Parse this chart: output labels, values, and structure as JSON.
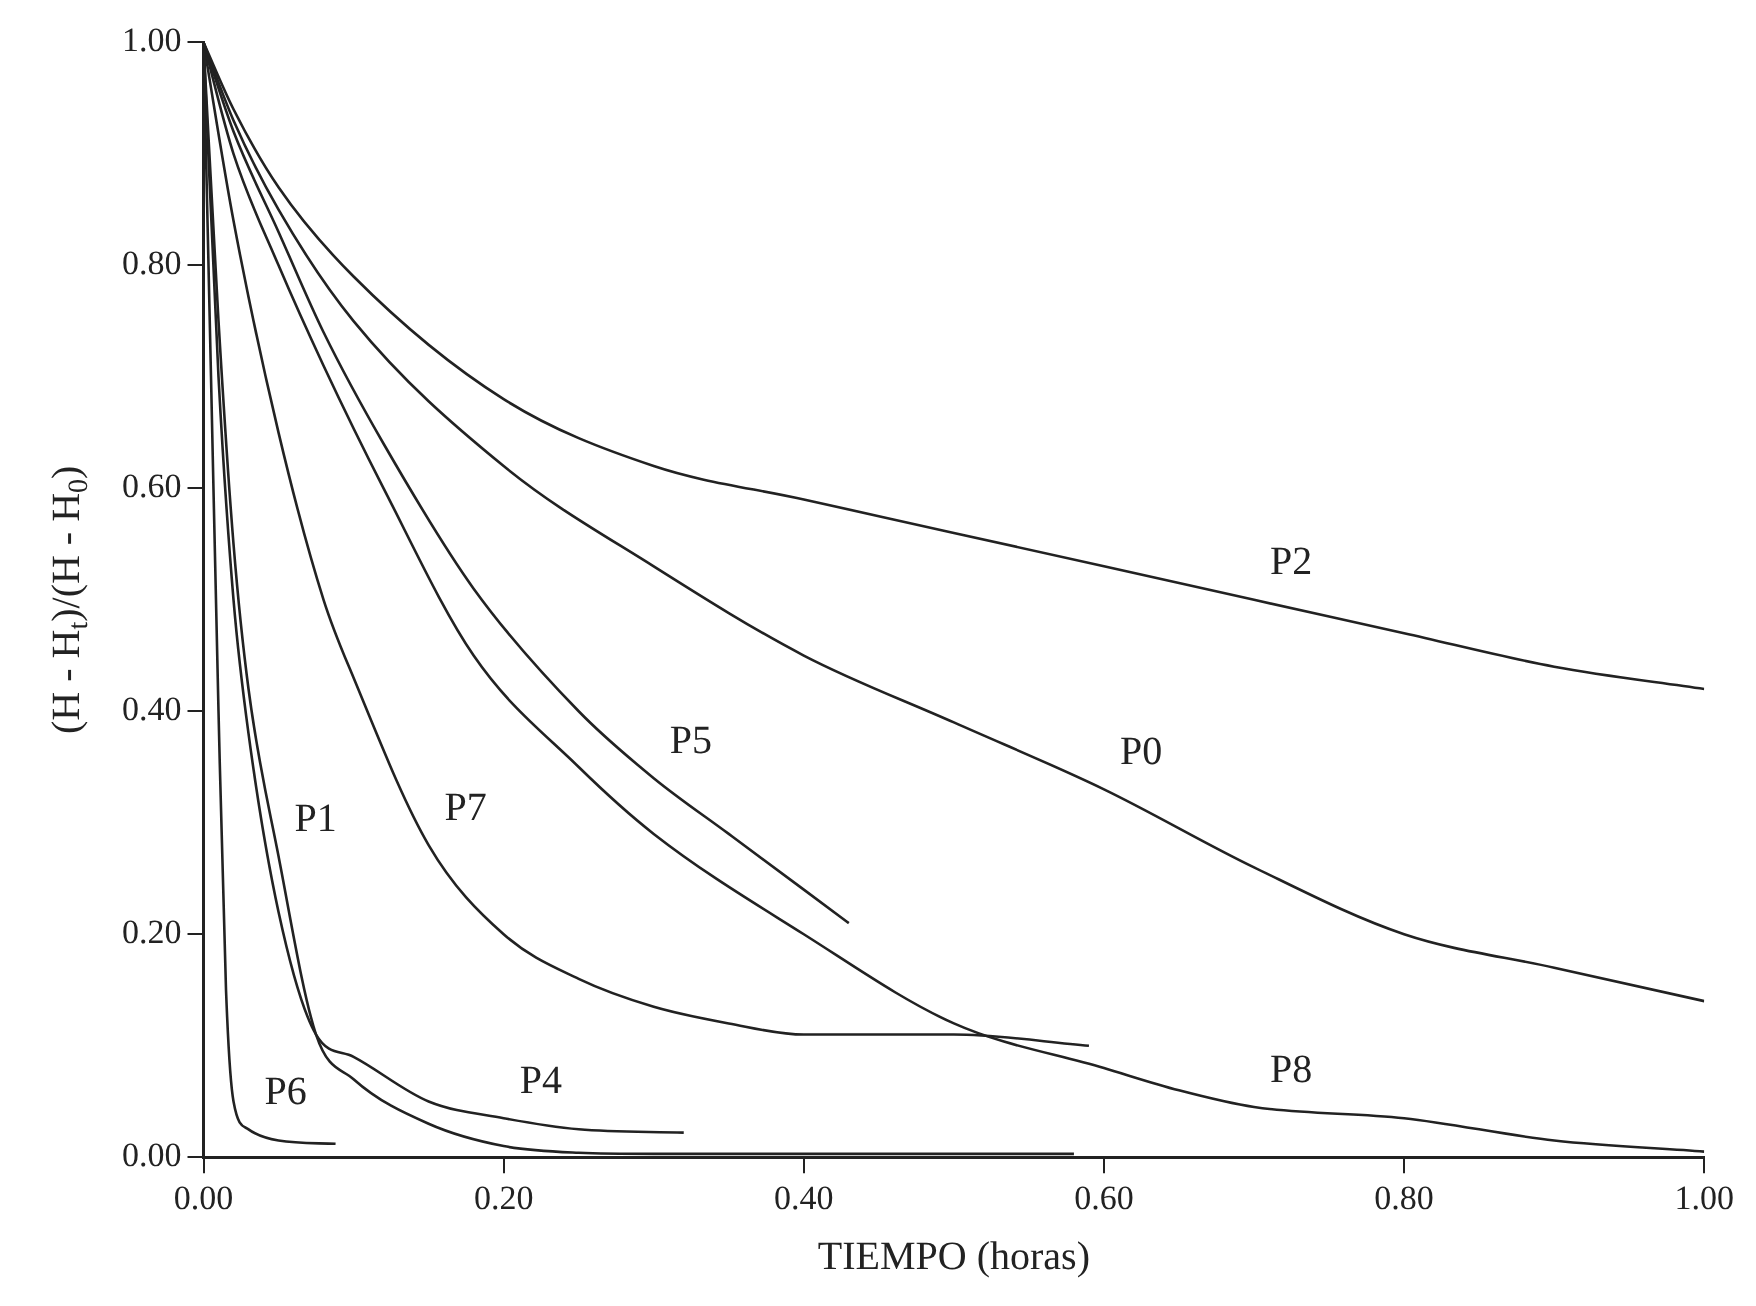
{
  "chart_data": {
    "type": "line",
    "xlabel": "TIEMPO (horas)",
    "ylabel": "(H - H$_{t}$)/(H - H$_{0}$)",
    "xlim": [
      0,
      1
    ],
    "ylim": [
      0,
      1
    ],
    "xticks": [
      {
        "value": 0,
        "label": "0.00"
      },
      {
        "value": 0.2,
        "label": "0.20"
      },
      {
        "value": 0.4,
        "label": "0.40"
      },
      {
        "value": 0.6,
        "label": "0.60"
      },
      {
        "value": 0.8,
        "label": "0.80"
      },
      {
        "value": 1,
        "label": "1.00"
      }
    ],
    "yticks": [
      {
        "value": 0,
        "label": "0.00"
      },
      {
        "value": 0.2,
        "label": "0.20"
      },
      {
        "value": 0.4,
        "label": "0.40"
      },
      {
        "value": 0.6,
        "label": "0.60"
      },
      {
        "value": 0.8,
        "label": "0.80"
      },
      {
        "value": 1,
        "label": "1.00"
      }
    ],
    "grid": false,
    "legend": false,
    "marker": "none",
    "line_style": "solid",
    "series": [
      {
        "color": "#222222",
        "x": [
          0,
          0.02,
          0.05,
          0.1,
          0.2,
          0.3,
          0.4,
          0.5,
          0.6,
          0.7,
          0.8,
          0.9,
          1.0
        ],
        "values": [
          1,
          0.94,
          0.87,
          0.79,
          0.68,
          0.62,
          0.59,
          0.56,
          0.53,
          0.5,
          0.47,
          0.44,
          0.42
        ]
      },
      {
        "color": "#222222",
        "x": [
          0,
          0.02,
          0.05,
          0.1,
          0.2,
          0.3,
          0.4,
          0.5,
          0.6,
          0.7,
          0.8,
          0.9,
          1.0
        ],
        "values": [
          1,
          0.93,
          0.85,
          0.75,
          0.62,
          0.53,
          0.45,
          0.39,
          0.33,
          0.26,
          0.2,
          0.17,
          0.14
        ]
      },
      {
        "color": "#222222",
        "x": [
          0,
          0.02,
          0.05,
          0.08,
          0.12,
          0.18,
          0.25,
          0.3,
          0.35,
          0.4,
          0.43
        ],
        "values": [
          1,
          0.92,
          0.83,
          0.74,
          0.64,
          0.51,
          0.4,
          0.34,
          0.29,
          0.24,
          0.21
        ]
      },
      {
        "color": "#222222",
        "x": [
          0,
          0.02,
          0.05,
          0.08,
          0.12,
          0.18,
          0.25,
          0.3,
          0.4,
          0.5,
          0.6,
          0.65,
          0.7,
          0.8,
          0.9,
          1.0
        ],
        "values": [
          1,
          0.9,
          0.8,
          0.71,
          0.6,
          0.45,
          0.35,
          0.29,
          0.2,
          0.12,
          0.08,
          0.06,
          0.045,
          0.035,
          0.015,
          0.005
        ]
      },
      {
        "color": "#222222",
        "x": [
          0,
          0.02,
          0.05,
          0.08,
          0.1,
          0.15,
          0.2,
          0.25,
          0.3,
          0.35,
          0.4,
          0.5,
          0.59
        ],
        "values": [
          1,
          0.84,
          0.65,
          0.5,
          0.43,
          0.28,
          0.2,
          0.16,
          0.135,
          0.12,
          0.11,
          0.11,
          0.1
        ]
      },
      {
        "color": "#222222",
        "x": [
          0,
          0.01,
          0.02,
          0.03,
          0.05,
          0.075,
          0.1,
          0.15,
          0.2,
          0.25,
          0.3,
          0.58
        ],
        "values": [
          1,
          0.75,
          0.55,
          0.42,
          0.27,
          0.11,
          0.07,
          0.03,
          0.01,
          0.004,
          0.003,
          0.003
        ]
      },
      {
        "color": "#222222",
        "x": [
          0,
          0.01,
          0.02,
          0.03,
          0.05,
          0.075,
          0.1,
          0.15,
          0.2,
          0.25,
          0.32
        ],
        "values": [
          1,
          0.7,
          0.5,
          0.38,
          0.22,
          0.11,
          0.09,
          0.05,
          0.035,
          0.025,
          0.022
        ]
      },
      {
        "color": "#222222",
        "x": [
          0,
          0.005,
          0.01,
          0.015,
          0.02,
          0.03,
          0.05,
          0.088
        ],
        "values": [
          1,
          0.7,
          0.4,
          0.15,
          0.05,
          0.025,
          0.015,
          0.012
        ]
      }
    ],
    "annotations": [
      {
        "text": "P2",
        "x": 0.7,
        "y": 0.5
      },
      {
        "text": "P0",
        "x": 0.6,
        "y": 0.33
      },
      {
        "text": "P5",
        "x": 0.3,
        "y": 0.34
      },
      {
        "text": "P8",
        "x": 0.7,
        "y": 0.045
      },
      {
        "text": "P7",
        "x": 0.15,
        "y": 0.28
      },
      {
        "text": "P1",
        "x": 0.05,
        "y": 0.27
      },
      {
        "text": "P4",
        "x": 0.2,
        "y": 0.035
      },
      {
        "text": "P6",
        "x": 0.03,
        "y": 0.025
      }
    ]
  }
}
